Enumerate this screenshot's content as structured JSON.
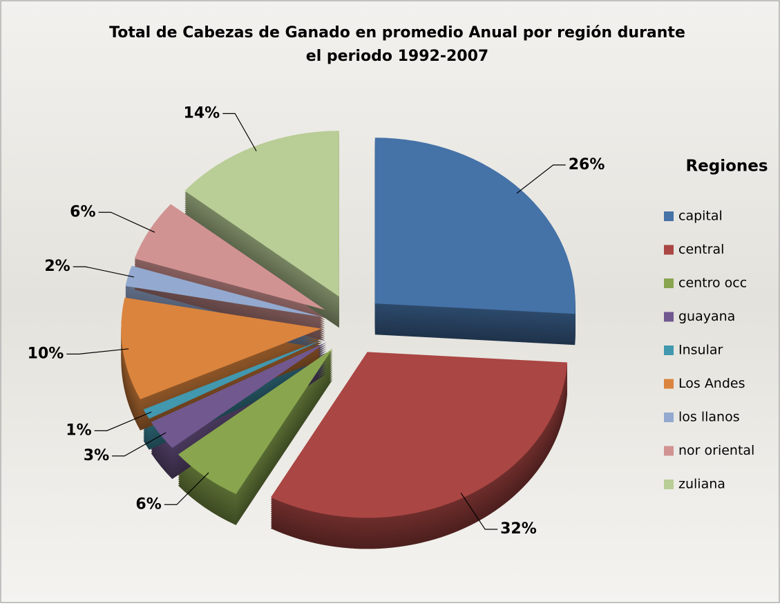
{
  "chart_data": {
    "type": "pie",
    "title": "Total de Cabezas de Ganado en promedio Anual por región durante el periodo 1992-2007",
    "legend_title": "Regiones",
    "legend_position": "right",
    "categories": [
      "capital",
      "central",
      "centro occ",
      "guayana",
      "Insular",
      "Los Andes",
      "los llanos",
      "nor oriental",
      "zuliana"
    ],
    "values": [
      26,
      32,
      6,
      3,
      1,
      10,
      2,
      6,
      14
    ],
    "value_labels": [
      "26%",
      "32%",
      "6%",
      "3%",
      "1%",
      "10%",
      "2%",
      "6%",
      "14%"
    ],
    "colors": [
      "#4572a7",
      "#aa4643",
      "#89a54e",
      "#71588f",
      "#4198af",
      "#db843d",
      "#93a9cf",
      "#d19392",
      "#b9cd96"
    ]
  }
}
